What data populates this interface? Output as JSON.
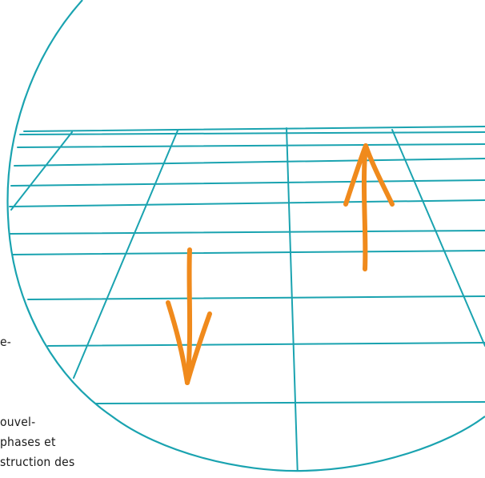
{
  "colors": {
    "grid": "#1aa3b0",
    "circle": "#1aa3b0",
    "arrow": "#f08a1c",
    "text": "#1a1a1a"
  },
  "illustration": {
    "arrow_down": {
      "direction": "down",
      "icon": "arrow-down-icon"
    },
    "arrow_up": {
      "direction": "up",
      "icon": "arrow-up-icon"
    }
  },
  "text_fragments": {
    "line1": "e-",
    "line2": "ouvel-",
    "line3": "phases et",
    "line4": "struction des"
  }
}
